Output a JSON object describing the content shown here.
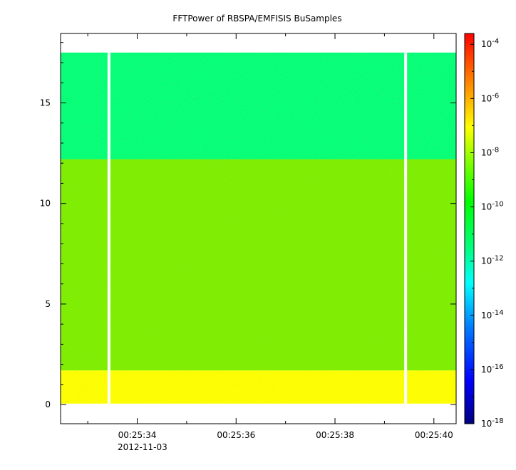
{
  "chart_data": {
    "type": "heatmap",
    "title": "FFTPower of RBSPA/EMFISIS  BuSamples",
    "xlabel": "",
    "ylabel": "",
    "x_ticks": [
      {
        "value": 34,
        "label": "00:25:34"
      },
      {
        "value": 36,
        "label": "00:25:36"
      },
      {
        "value": 38,
        "label": "00:25:38"
      },
      {
        "value": 40,
        "label": "00:25:40"
      }
    ],
    "x_minor_ticks": [
      33,
      35,
      37,
      39
    ],
    "x_date_label": "2012-11-03",
    "xlim": [
      32.45,
      40.45
    ],
    "y_ticks": [
      {
        "value": 0,
        "label": "0"
      },
      {
        "value": 5,
        "label": "5"
      },
      {
        "value": 10,
        "label": "10"
      },
      {
        "value": 15,
        "label": "15"
      }
    ],
    "ylim": [
      -0.95,
      18.45
    ],
    "data_extent": {
      "x": [
        32.45,
        40.45
      ],
      "y": [
        0.05,
        17.5
      ]
    },
    "gaps_x": [
      {
        "start": 33.4,
        "end": 33.45
      },
      {
        "start": 39.4,
        "end": 39.45
      }
    ],
    "bands": [
      {
        "y_from": 0.05,
        "y_to": 1.7,
        "log10_power": -8.6,
        "color": "#ffff00"
      },
      {
        "y_from": 1.7,
        "y_to": 12.2,
        "log10_power": -10.2,
        "color": "#7cee00"
      },
      {
        "y_from": 12.2,
        "y_to": 17.5,
        "log10_power": -12.2,
        "color": "#00ff7a"
      }
    ],
    "colorbar": {
      "scale": "log",
      "range_log10": [
        -18,
        -3.6
      ],
      "tick_exponents": [
        -4,
        -6,
        -8,
        -10,
        -12,
        -14,
        -16,
        -18
      ],
      "tick_base": "10",
      "colors": [
        "#00007f",
        "#0000ff",
        "#007fff",
        "#00ffff",
        "#00ff80",
        "#00ff00",
        "#80ff00",
        "#ffff00",
        "#ff8000",
        "#ff0000"
      ]
    }
  }
}
